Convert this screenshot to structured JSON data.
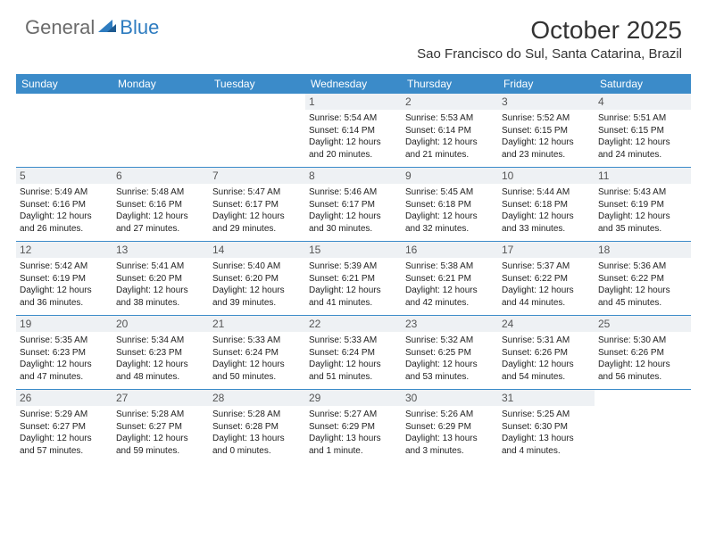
{
  "logo": {
    "text_general": "General",
    "text_blue": "Blue"
  },
  "title": "October 2025",
  "location": "Sao Francisco do Sul, Santa Catarina, Brazil",
  "colors": {
    "header_bar": "#3b8bc9",
    "header_text": "#ffffff",
    "daynum_bg": "#eef1f4",
    "daynum_text": "#555555",
    "body_text": "#222222",
    "border": "#3b8bc9",
    "background": "#ffffff",
    "logo_gray": "#6b6b6b",
    "logo_blue": "#2e7cc0"
  },
  "day_names": [
    "Sunday",
    "Monday",
    "Tuesday",
    "Wednesday",
    "Thursday",
    "Friday",
    "Saturday"
  ],
  "weeks": [
    [
      {
        "day": "",
        "lines": []
      },
      {
        "day": "",
        "lines": []
      },
      {
        "day": "",
        "lines": []
      },
      {
        "day": "1",
        "lines": [
          "Sunrise: 5:54 AM",
          "Sunset: 6:14 PM",
          "Daylight: 12 hours",
          "and 20 minutes."
        ]
      },
      {
        "day": "2",
        "lines": [
          "Sunrise: 5:53 AM",
          "Sunset: 6:14 PM",
          "Daylight: 12 hours",
          "and 21 minutes."
        ]
      },
      {
        "day": "3",
        "lines": [
          "Sunrise: 5:52 AM",
          "Sunset: 6:15 PM",
          "Daylight: 12 hours",
          "and 23 minutes."
        ]
      },
      {
        "day": "4",
        "lines": [
          "Sunrise: 5:51 AM",
          "Sunset: 6:15 PM",
          "Daylight: 12 hours",
          "and 24 minutes."
        ]
      }
    ],
    [
      {
        "day": "5",
        "lines": [
          "Sunrise: 5:49 AM",
          "Sunset: 6:16 PM",
          "Daylight: 12 hours",
          "and 26 minutes."
        ]
      },
      {
        "day": "6",
        "lines": [
          "Sunrise: 5:48 AM",
          "Sunset: 6:16 PM",
          "Daylight: 12 hours",
          "and 27 minutes."
        ]
      },
      {
        "day": "7",
        "lines": [
          "Sunrise: 5:47 AM",
          "Sunset: 6:17 PM",
          "Daylight: 12 hours",
          "and 29 minutes."
        ]
      },
      {
        "day": "8",
        "lines": [
          "Sunrise: 5:46 AM",
          "Sunset: 6:17 PM",
          "Daylight: 12 hours",
          "and 30 minutes."
        ]
      },
      {
        "day": "9",
        "lines": [
          "Sunrise: 5:45 AM",
          "Sunset: 6:18 PM",
          "Daylight: 12 hours",
          "and 32 minutes."
        ]
      },
      {
        "day": "10",
        "lines": [
          "Sunrise: 5:44 AM",
          "Sunset: 6:18 PM",
          "Daylight: 12 hours",
          "and 33 minutes."
        ]
      },
      {
        "day": "11",
        "lines": [
          "Sunrise: 5:43 AM",
          "Sunset: 6:19 PM",
          "Daylight: 12 hours",
          "and 35 minutes."
        ]
      }
    ],
    [
      {
        "day": "12",
        "lines": [
          "Sunrise: 5:42 AM",
          "Sunset: 6:19 PM",
          "Daylight: 12 hours",
          "and 36 minutes."
        ]
      },
      {
        "day": "13",
        "lines": [
          "Sunrise: 5:41 AM",
          "Sunset: 6:20 PM",
          "Daylight: 12 hours",
          "and 38 minutes."
        ]
      },
      {
        "day": "14",
        "lines": [
          "Sunrise: 5:40 AM",
          "Sunset: 6:20 PM",
          "Daylight: 12 hours",
          "and 39 minutes."
        ]
      },
      {
        "day": "15",
        "lines": [
          "Sunrise: 5:39 AM",
          "Sunset: 6:21 PM",
          "Daylight: 12 hours",
          "and 41 minutes."
        ]
      },
      {
        "day": "16",
        "lines": [
          "Sunrise: 5:38 AM",
          "Sunset: 6:21 PM",
          "Daylight: 12 hours",
          "and 42 minutes."
        ]
      },
      {
        "day": "17",
        "lines": [
          "Sunrise: 5:37 AM",
          "Sunset: 6:22 PM",
          "Daylight: 12 hours",
          "and 44 minutes."
        ]
      },
      {
        "day": "18",
        "lines": [
          "Sunrise: 5:36 AM",
          "Sunset: 6:22 PM",
          "Daylight: 12 hours",
          "and 45 minutes."
        ]
      }
    ],
    [
      {
        "day": "19",
        "lines": [
          "Sunrise: 5:35 AM",
          "Sunset: 6:23 PM",
          "Daylight: 12 hours",
          "and 47 minutes."
        ]
      },
      {
        "day": "20",
        "lines": [
          "Sunrise: 5:34 AM",
          "Sunset: 6:23 PM",
          "Daylight: 12 hours",
          "and 48 minutes."
        ]
      },
      {
        "day": "21",
        "lines": [
          "Sunrise: 5:33 AM",
          "Sunset: 6:24 PM",
          "Daylight: 12 hours",
          "and 50 minutes."
        ]
      },
      {
        "day": "22",
        "lines": [
          "Sunrise: 5:33 AM",
          "Sunset: 6:24 PM",
          "Daylight: 12 hours",
          "and 51 minutes."
        ]
      },
      {
        "day": "23",
        "lines": [
          "Sunrise: 5:32 AM",
          "Sunset: 6:25 PM",
          "Daylight: 12 hours",
          "and 53 minutes."
        ]
      },
      {
        "day": "24",
        "lines": [
          "Sunrise: 5:31 AM",
          "Sunset: 6:26 PM",
          "Daylight: 12 hours",
          "and 54 minutes."
        ]
      },
      {
        "day": "25",
        "lines": [
          "Sunrise: 5:30 AM",
          "Sunset: 6:26 PM",
          "Daylight: 12 hours",
          "and 56 minutes."
        ]
      }
    ],
    [
      {
        "day": "26",
        "lines": [
          "Sunrise: 5:29 AM",
          "Sunset: 6:27 PM",
          "Daylight: 12 hours",
          "and 57 minutes."
        ]
      },
      {
        "day": "27",
        "lines": [
          "Sunrise: 5:28 AM",
          "Sunset: 6:27 PM",
          "Daylight: 12 hours",
          "and 59 minutes."
        ]
      },
      {
        "day": "28",
        "lines": [
          "Sunrise: 5:28 AM",
          "Sunset: 6:28 PM",
          "Daylight: 13 hours",
          "and 0 minutes."
        ]
      },
      {
        "day": "29",
        "lines": [
          "Sunrise: 5:27 AM",
          "Sunset: 6:29 PM",
          "Daylight: 13 hours",
          "and 1 minute."
        ]
      },
      {
        "day": "30",
        "lines": [
          "Sunrise: 5:26 AM",
          "Sunset: 6:29 PM",
          "Daylight: 13 hours",
          "and 3 minutes."
        ]
      },
      {
        "day": "31",
        "lines": [
          "Sunrise: 5:25 AM",
          "Sunset: 6:30 PM",
          "Daylight: 13 hours",
          "and 4 minutes."
        ]
      },
      {
        "day": "",
        "lines": []
      }
    ]
  ]
}
